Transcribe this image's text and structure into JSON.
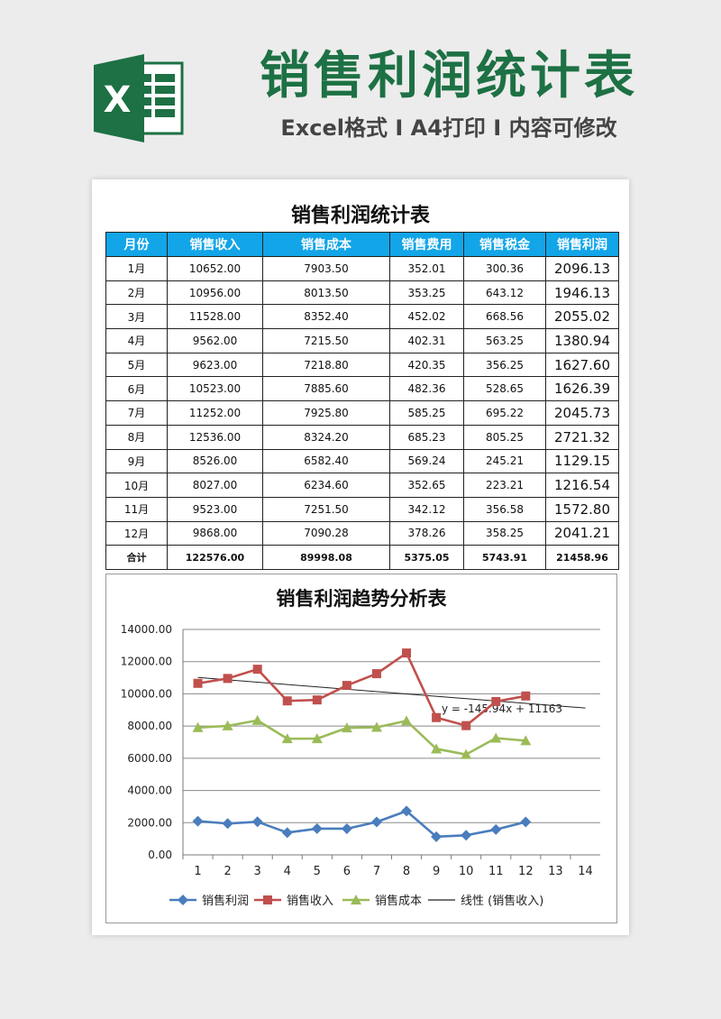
{
  "header": {
    "title": "销售利润统计表",
    "subtitle": "Excel格式 I A4打印 I 内容可修改",
    "logo_letter": "X"
  },
  "colors": {
    "brand_green": "#1d7144",
    "header_blue": "#12a5e8",
    "series_profit": "#4a7dbd",
    "series_revenue": "#c0504d",
    "series_cost": "#9bbb59",
    "trend": "#222222"
  },
  "table": {
    "title": "销售利润统计表",
    "columns": [
      "月份",
      "销售收入",
      "销售成本",
      "销售费用",
      "销售税金",
      "销售利润"
    ],
    "rows": [
      [
        "1月",
        "10652.00",
        "7903.50",
        "352.01",
        "300.36",
        "2096.13"
      ],
      [
        "2月",
        "10956.00",
        "8013.50",
        "353.25",
        "643.12",
        "1946.13"
      ],
      [
        "3月",
        "11528.00",
        "8352.40",
        "452.02",
        "668.56",
        "2055.02"
      ],
      [
        "4月",
        "9562.00",
        "7215.50",
        "402.31",
        "563.25",
        "1380.94"
      ],
      [
        "5月",
        "9623.00",
        "7218.80",
        "420.35",
        "356.25",
        "1627.60"
      ],
      [
        "6月",
        "10523.00",
        "7885.60",
        "482.36",
        "528.65",
        "1626.39"
      ],
      [
        "7月",
        "11252.00",
        "7925.80",
        "585.25",
        "695.22",
        "2045.73"
      ],
      [
        "8月",
        "12536.00",
        "8324.20",
        "685.23",
        "805.25",
        "2721.32"
      ],
      [
        "9月",
        "8526.00",
        "6582.40",
        "569.24",
        "245.21",
        "1129.15"
      ],
      [
        "10月",
        "8027.00",
        "6234.60",
        "352.65",
        "223.21",
        "1216.54"
      ],
      [
        "11月",
        "9523.00",
        "7251.50",
        "342.12",
        "356.58",
        "1572.80"
      ],
      [
        "12月",
        "9868.00",
        "7090.28",
        "378.26",
        "358.25",
        "2041.21"
      ]
    ],
    "total": [
      "合计",
      "122576.00",
      "89998.08",
      "5375.05",
      "5743.91",
      "21458.96"
    ]
  },
  "chart_data": {
    "type": "line",
    "title": "销售利润趋势分析表",
    "x": [
      1,
      2,
      3,
      4,
      5,
      6,
      7,
      8,
      9,
      10,
      11,
      12
    ],
    "xticks": [
      "1",
      "2",
      "3",
      "4",
      "5",
      "6",
      "7",
      "8",
      "9",
      "10",
      "11",
      "12",
      "13",
      "14"
    ],
    "xlim": [
      0.5,
      14.5
    ],
    "ylim": [
      0,
      14000
    ],
    "yticks": [
      "0.00",
      "2000.00",
      "4000.00",
      "6000.00",
      "8000.00",
      "10000.00",
      "12000.00",
      "14000.00"
    ],
    "grid": true,
    "legend_position": "bottom",
    "series": [
      {
        "name": "销售利润",
        "marker": "diamond",
        "values": [
          2096.13,
          1946.13,
          2055.02,
          1380.94,
          1627.6,
          1626.39,
          2045.73,
          2721.32,
          1129.15,
          1216.54,
          1572.8,
          2041.21
        ]
      },
      {
        "name": "销售收入",
        "marker": "square",
        "values": [
          10652,
          10956,
          11528,
          9562,
          9623,
          10523,
          11252,
          12536,
          8526,
          8027,
          9523,
          9868
        ]
      },
      {
        "name": "销售成本",
        "marker": "triangle",
        "values": [
          7903.5,
          8013.5,
          8352.4,
          7215.5,
          7218.8,
          7885.6,
          7925.8,
          8324.2,
          6582.4,
          6234.6,
          7251.5,
          7090.28
        ]
      }
    ],
    "trendline": {
      "name": "线性 (销售收入)",
      "slope": -145.94,
      "intercept": 11163,
      "x_range": [
        1,
        14
      ],
      "equation_label": "y = -145.94x + 11163"
    }
  }
}
